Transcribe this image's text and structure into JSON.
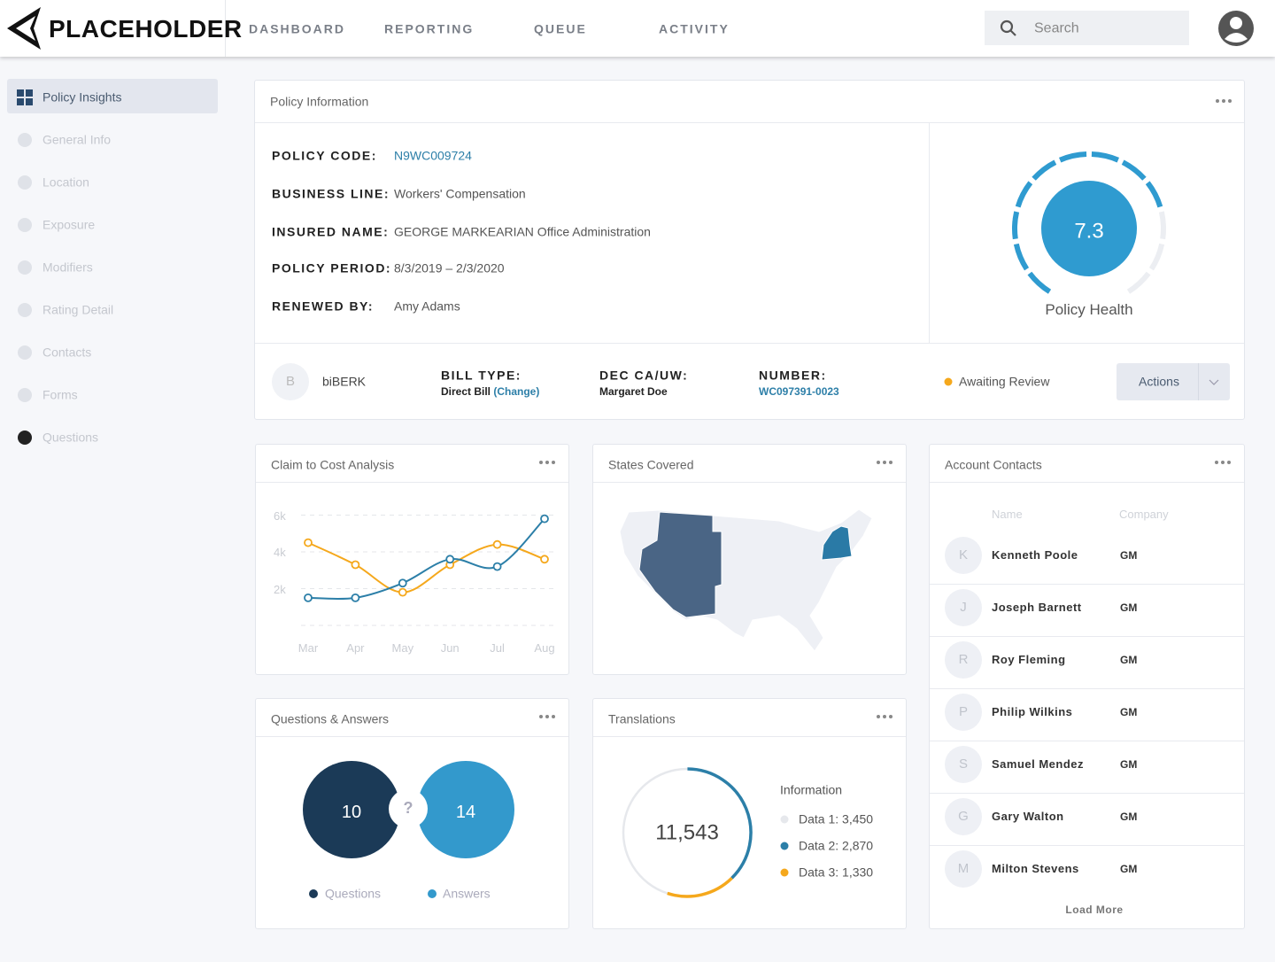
{
  "header": {
    "logo": "PLACEHOLDER",
    "nav": [
      "DASHBOARD",
      "REPORTING",
      "QUEUE",
      "ACTIVITY"
    ],
    "search_placeholder": "Search"
  },
  "sidebar": {
    "items": [
      "Policy Insights",
      "General Info",
      "Location",
      "Exposure",
      "Modifiers",
      "Rating Detail",
      "Contacts",
      "Forms",
      "Questions"
    ],
    "active": 0
  },
  "policy_information": {
    "title": "Policy Information",
    "fields": [
      {
        "label": "POLICY CODE:",
        "value": "N9WC009724"
      },
      {
        "label": "BUSINESS LINE:",
        "value": "Workers' Compensation"
      },
      {
        "label": "INSURED NAME:",
        "value": "GEORGE MARKEARIAN Office Administration"
      },
      {
        "label": "POLICY PERIOD:",
        "value": "8/3/2019 – 2/3/2020"
      },
      {
        "label": "RENEWED BY:",
        "value": "Amy Adams"
      }
    ],
    "health": {
      "score": 7.3,
      "label": "Policy Health"
    },
    "carrier": {
      "initial": "B",
      "name": "biBERK"
    },
    "bill_type": {
      "label": "BILL TYPE:",
      "value": "Direct Bill",
      "link": "(Change)"
    },
    "dec": {
      "label": "DEC CA/UW:",
      "value": "Margaret Doe"
    },
    "number": {
      "label": "NUMBER:",
      "value": "WC097391-0023"
    },
    "status": "Awaiting Review",
    "actions": "Actions"
  },
  "claim_chart": {
    "type": "line",
    "title": "Claim to Cost Analysis",
    "categories": [
      "Mar",
      "Apr",
      "May",
      "Jun",
      "Jul",
      "Aug"
    ],
    "series": [
      {
        "color": "#f5a81c",
        "values": [
          4500,
          3300,
          1800,
          3300,
          4400,
          3600
        ]
      },
      {
        "color": "#2c7fa8",
        "values": [
          1500,
          1500,
          2300,
          3600,
          3200,
          5800
        ]
      }
    ],
    "ylim": [
      0,
      6500
    ],
    "yticks": [
      {
        "value": 2000,
        "label": "2k"
      },
      {
        "value": 4000,
        "label": "4k"
      },
      {
        "value": 6000,
        "label": "6k"
      }
    ],
    "grid": true
  },
  "states_covered": {
    "title": "States Covered"
  },
  "account_contacts": {
    "title": "Account Contacts",
    "columns": [
      "Name",
      "Company"
    ],
    "rows": [
      {
        "initial": "K",
        "name": "Kenneth Poole",
        "company": "GM"
      },
      {
        "initial": "J",
        "name": "Joseph Barnett",
        "company": "GM"
      },
      {
        "initial": "R",
        "name": "Roy Fleming",
        "company": "GM"
      },
      {
        "initial": "P",
        "name": "Philip Wilkins",
        "company": "GM"
      },
      {
        "initial": "S",
        "name": "Samuel Mendez",
        "company": "GM"
      },
      {
        "initial": "G",
        "name": "Gary Walton",
        "company": "GM"
      },
      {
        "initial": "M",
        "name": "Milton Stevens",
        "company": "GM"
      }
    ],
    "load_more": "Load More"
  },
  "questions_answers": {
    "title": "Questions & Answers",
    "separator": "?",
    "questions": {
      "count": 10,
      "label": "Questions",
      "color": "#1b3a57"
    },
    "answers": {
      "count": 14,
      "label": "Answers",
      "color": "#3399cc"
    }
  },
  "translations": {
    "title": "Translations",
    "total": "11,543",
    "legend_title": "Information",
    "items": [
      {
        "label": "Data 1:",
        "value": 3450,
        "value_label": "3,450",
        "color": "#e6e8ec"
      },
      {
        "label": "Data 2:",
        "value": 2870,
        "value_label": "2,870",
        "color": "#2c7fa8"
      },
      {
        "label": "Data 3:",
        "value": 1330,
        "value_label": "1,330",
        "color": "#f5a81c"
      }
    ]
  }
}
